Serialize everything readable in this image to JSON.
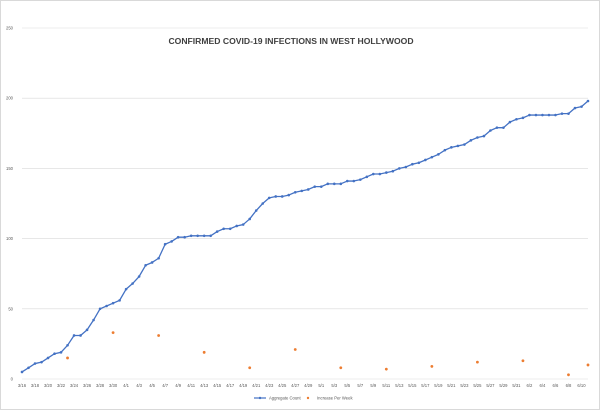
{
  "chart_data": {
    "type": "line",
    "title": "CONFIRMED COVID-19 INFECTIONS IN WEST HOLLYWOOD",
    "xlabel": "",
    "ylabel": "",
    "ylim": [
      0,
      250
    ],
    "yticks": [
      0,
      50,
      100,
      150,
      200,
      250
    ],
    "x_tick_labels": [
      "3/16",
      "3/18",
      "3/20",
      "3/22",
      "3/24",
      "3/26",
      "3/28",
      "3/30",
      "4/1",
      "4/3",
      "4/5",
      "4/7",
      "4/9",
      "4/11",
      "4/13",
      "4/15",
      "4/17",
      "4/19",
      "4/21",
      "4/23",
      "4/25",
      "4/27",
      "4/29",
      "5/1",
      "5/3",
      "5/5",
      "5/7",
      "5/9",
      "5/11",
      "5/13",
      "5/15",
      "5/17",
      "5/19",
      "5/21",
      "5/23",
      "5/25",
      "5/27",
      "5/29",
      "5/31",
      "6/2",
      "6/4",
      "6/6",
      "6/8",
      "6/10"
    ],
    "grid": true,
    "legend_position": "bottom",
    "series": [
      {
        "name": "Aggregate Count",
        "color": "#4472c4",
        "values": [
          5,
          8,
          11,
          12,
          15,
          18,
          19,
          24,
          31,
          31,
          35,
          42,
          50,
          52,
          54,
          56,
          64,
          68,
          73,
          81,
          83,
          86,
          96,
          98,
          101,
          101,
          102,
          102,
          102,
          102,
          105,
          107,
          107,
          109,
          110,
          114,
          120,
          125,
          129,
          130,
          130,
          131,
          133,
          134,
          135,
          137,
          137,
          139,
          139,
          139,
          141,
          141,
          142,
          144,
          146,
          146,
          147,
          148,
          150,
          151,
          153,
          154,
          156,
          158,
          160,
          163,
          165,
          166,
          167,
          170,
          172,
          173,
          177,
          179,
          179,
          183,
          185,
          186,
          188,
          188,
          188,
          188,
          188,
          189,
          189,
          193,
          194,
          198
        ]
      },
      {
        "name": "Increase Per Week",
        "color": "#ed7d31",
        "marker_only": true,
        "points": [
          {
            "index": 7,
            "value": 15
          },
          {
            "index": 14,
            "value": 33
          },
          {
            "index": 21,
            "value": 31
          },
          {
            "index": 28,
            "value": 19
          },
          {
            "index": 35,
            "value": 8
          },
          {
            "index": 42,
            "value": 21
          },
          {
            "index": 49,
            "value": 8
          },
          {
            "index": 56,
            "value": 7
          },
          {
            "index": 63,
            "value": 9
          },
          {
            "index": 70,
            "value": 12
          },
          {
            "index": 77,
            "value": 13
          },
          {
            "index": 84,
            "value": 3
          },
          {
            "index": 87,
            "value": 10
          }
        ]
      }
    ]
  }
}
